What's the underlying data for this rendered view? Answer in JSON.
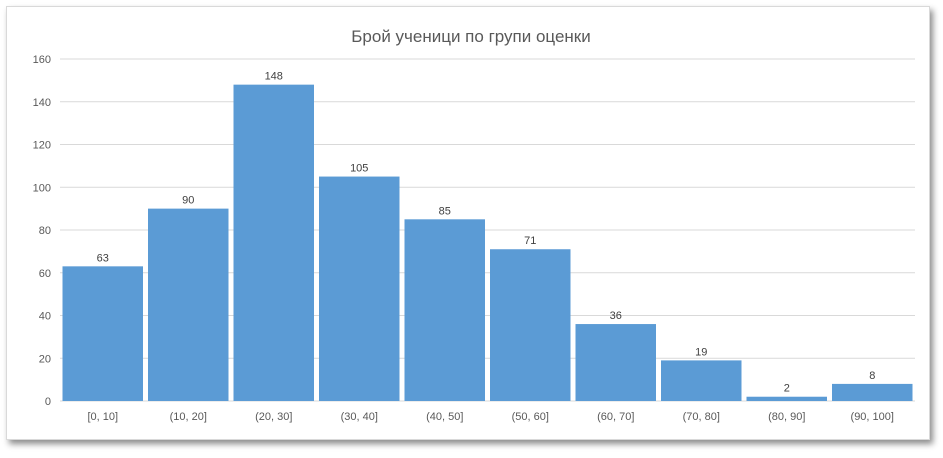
{
  "chart_data": {
    "type": "bar",
    "title": "Брой ученици по групи оценки",
    "xlabel": "",
    "ylabel": "",
    "categories": [
      "[0, 10]",
      "(10, 20]",
      "(20, 30]",
      "(30, 40]",
      "(40, 50]",
      "(50, 60]",
      "(60, 70]",
      "(70, 80]",
      "(80, 90]",
      "(90, 100]"
    ],
    "values": [
      63,
      90,
      148,
      105,
      85,
      71,
      36,
      19,
      2,
      8
    ],
    "ylim": [
      0,
      160
    ],
    "yticks": [
      0,
      20,
      40,
      60,
      80,
      100,
      120,
      140,
      160
    ],
    "grid": true,
    "legend": "none",
    "bar_color": "#5b9bd5"
  }
}
